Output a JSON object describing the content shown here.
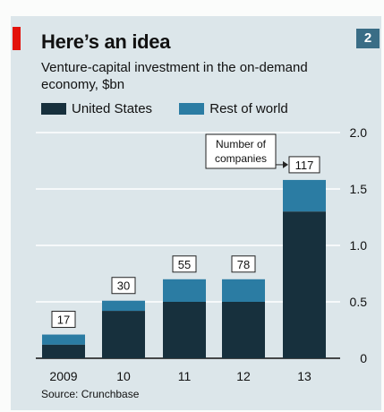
{
  "header": {
    "title": "Here’s an idea",
    "subtitle": "Venture-capital investment in the on-demand economy, $bn",
    "badge": "2"
  },
  "legend": {
    "us_label": "United States",
    "row_label": "Rest of world"
  },
  "colors": {
    "us": "#17303d",
    "row": "#2b7ca3",
    "accent_red": "#e3120b",
    "panel": "#dce6ea"
  },
  "callout": {
    "line1": "Number of",
    "line2": "companies"
  },
  "source": "Source: Crunchbase",
  "chart_data": {
    "type": "bar",
    "stacked": true,
    "categories": [
      "2009",
      "10",
      "11",
      "12",
      "13"
    ],
    "series": [
      {
        "name": "United States",
        "values": [
          0.12,
          0.42,
          0.5,
          0.5,
          1.3
        ]
      },
      {
        "name": "Rest of world",
        "values": [
          0.09,
          0.09,
          0.2,
          0.2,
          0.28
        ]
      }
    ],
    "company_counts": [
      17,
      30,
      55,
      78,
      117
    ],
    "ylim": [
      0,
      2.0
    ],
    "yticks": [
      "0",
      "0.5",
      "1.0",
      "1.5",
      "2.0"
    ],
    "ytick_values": [
      0,
      0.5,
      1.0,
      1.5,
      2.0
    ],
    "grid": true,
    "yaxis_side": "right",
    "legend_position": "top-left"
  }
}
